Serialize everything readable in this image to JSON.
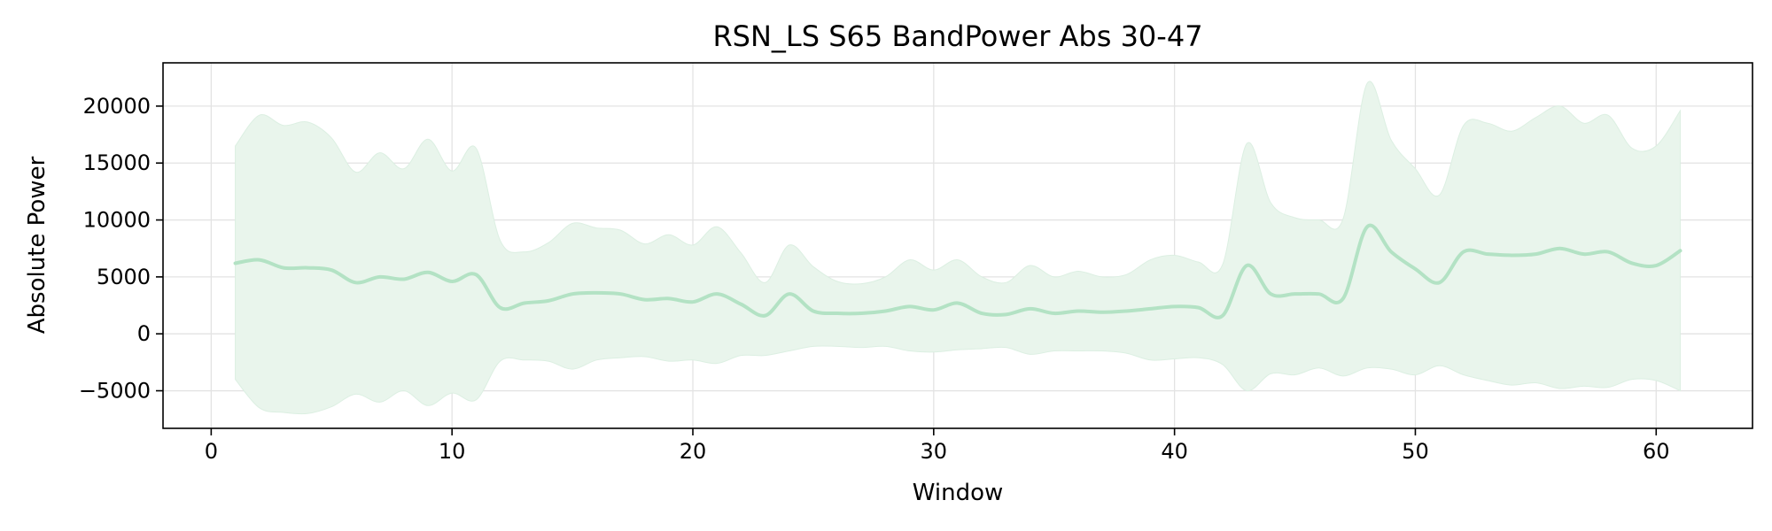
{
  "chart_data": {
    "type": "line",
    "title": "RSN_LS S65 BandPower Abs 30-47",
    "xlabel": "Window",
    "ylabel": "Absolute Power",
    "xlim": [
      -2,
      64
    ],
    "ylim": [
      -8300,
      23800
    ],
    "xticks": [
      0,
      10,
      20,
      30,
      40,
      50,
      60
    ],
    "yticks": [
      -5000,
      0,
      5000,
      10000,
      15000,
      20000
    ],
    "ytick_labels": [
      "−5000",
      "0",
      "5000",
      "10000",
      "15000",
      "20000"
    ],
    "grid": true,
    "colors": {
      "line": "#b3e2c4",
      "band": "#e9f5ec",
      "grid": "#e3e3e3"
    },
    "series": [
      {
        "x": [
          1,
          2,
          3,
          4,
          5,
          6,
          7,
          8,
          9,
          10,
          11,
          12,
          13,
          14,
          15,
          16,
          17,
          18,
          19,
          20,
          21,
          22,
          23,
          24,
          25,
          26,
          27,
          28,
          29,
          30,
          31,
          32,
          33,
          34,
          35,
          36,
          37,
          38,
          39,
          40,
          41,
          42,
          43,
          44,
          45,
          46,
          47,
          48,
          49,
          50,
          51,
          52,
          53,
          54,
          55,
          56,
          57,
          58,
          59,
          60,
          61
        ],
        "mean": [
          6200,
          6500,
          5800,
          5800,
          5600,
          4500,
          5000,
          4800,
          5400,
          4600,
          5200,
          2300,
          2700,
          2900,
          3500,
          3600,
          3500,
          3000,
          3100,
          2800,
          3500,
          2600,
          1600,
          3500,
          2000,
          1800,
          1800,
          2000,
          2400,
          2100,
          2700,
          1800,
          1700,
          2200,
          1800,
          2000,
          1900,
          2000,
          2200,
          2400,
          2300,
          1600,
          6000,
          3500,
          3500,
          3500,
          3100,
          9400,
          7200,
          5700,
          4500,
          7200,
          7000,
          6900,
          7000,
          7500,
          7000,
          7200,
          6200,
          6000,
          7300
        ],
        "upper": [
          16500,
          19200,
          18300,
          18600,
          17200,
          14200,
          15900,
          14500,
          17100,
          14300,
          16300,
          8200,
          7200,
          8000,
          9700,
          9300,
          9100,
          7900,
          8700,
          7800,
          9400,
          7100,
          4500,
          7800,
          5900,
          4600,
          4400,
          5000,
          6500,
          5600,
          6500,
          5000,
          4500,
          6000,
          5000,
          5500,
          5000,
          5200,
          6500,
          6900,
          6300,
          6100,
          16700,
          11500,
          10200,
          10000,
          10100,
          22000,
          17000,
          14500,
          12200,
          18300,
          18500,
          17800,
          19000,
          20000,
          18500,
          19200,
          16300,
          16500,
          19600
        ],
        "lower": [
          -4000,
          -6500,
          -6900,
          -7000,
          -6400,
          -5300,
          -6000,
          -5000,
          -6300,
          -5200,
          -5800,
          -2400,
          -2300,
          -2400,
          -3100,
          -2300,
          -2100,
          -2000,
          -2400,
          -2300,
          -2600,
          -1900,
          -1900,
          -1500,
          -1100,
          -1100,
          -1200,
          -1100,
          -1500,
          -1600,
          -1400,
          -1300,
          -1200,
          -1800,
          -1500,
          -1500,
          -1500,
          -1700,
          -2300,
          -2200,
          -2100,
          -2700,
          -5000,
          -3500,
          -3600,
          -3000,
          -3700,
          -3000,
          -3100,
          -3600,
          -2800,
          -3600,
          -4100,
          -4500,
          -4300,
          -4800,
          -4600,
          -4700,
          -4000,
          -4100,
          -5000
        ]
      }
    ]
  }
}
